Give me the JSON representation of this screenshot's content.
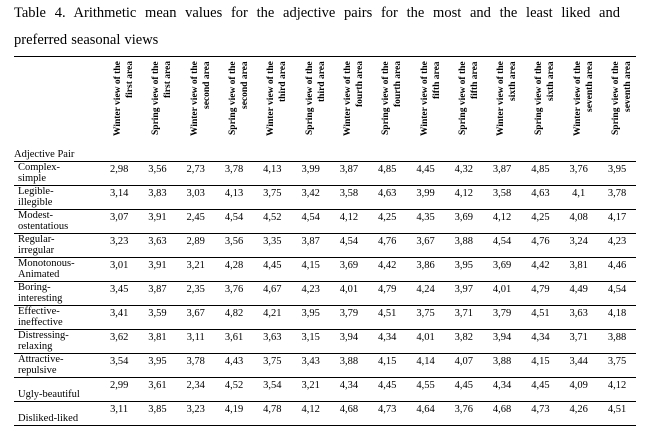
{
  "caption": {
    "line1": "Table 4. Arithmetic mean values for the adjective pairs for the most and the least liked and",
    "line2": "preferred seasonal views"
  },
  "table": {
    "row_header": "Adjective Pair",
    "columns": [
      [
        "Winter view of the",
        "first area"
      ],
      [
        "Spring view of the",
        "first area"
      ],
      [
        "Winter view of the",
        "second area"
      ],
      [
        "Spring view of the",
        "second area"
      ],
      [
        "Winter view of the",
        "third area"
      ],
      [
        "Spring view of the",
        "third area"
      ],
      [
        "Winter view of the",
        "fourth area"
      ],
      [
        "Spring view of the",
        "fourth area"
      ],
      [
        "Winter view of the",
        "fifth area"
      ],
      [
        "Spring view of the",
        "fifth area"
      ],
      [
        "Winter view of the",
        "sixth area"
      ],
      [
        "Spring view of the",
        "sixth area"
      ],
      [
        "Winter view of the",
        "seventh area"
      ],
      [
        "Spring view of the",
        "seventh area"
      ]
    ],
    "rows": [
      {
        "label": [
          "Complex-",
          "simple"
        ],
        "values": [
          "2,98",
          "3,56",
          "2,73",
          "3,78",
          "4,13",
          "3,99",
          "3,87",
          "4,85",
          "4,45",
          "4,32",
          "3,87",
          "4,85",
          "3,76",
          "3,95"
        ]
      },
      {
        "label": [
          "Legible-",
          "illegible"
        ],
        "values": [
          "3,14",
          "3,83",
          "3,03",
          "4,13",
          "3,75",
          "3,42",
          "3,58",
          "4,63",
          "3,99",
          "4,12",
          "3,58",
          "4,63",
          "4,1",
          "3,78"
        ]
      },
      {
        "label": [
          "Modest-",
          "ostentatious"
        ],
        "values": [
          "3,07",
          "3,91",
          "2,45",
          "4,54",
          "4,52",
          "4,54",
          "4,12",
          "4,25",
          "4,35",
          "3,69",
          "4,12",
          "4,25",
          "4,08",
          "4,17"
        ]
      },
      {
        "label": [
          "Regular-",
          "irregular"
        ],
        "values": [
          "3,23",
          "3,63",
          "2,89",
          "3,56",
          "3,35",
          "3,87",
          "4,54",
          "4,76",
          "3,67",
          "3,88",
          "4,54",
          "4,76",
          "3,24",
          "4,23"
        ]
      },
      {
        "label": [
          "Monotonous-",
          "Animated"
        ],
        "values": [
          "3,01",
          "3,91",
          "3,21",
          "4,28",
          "4,45",
          "4,15",
          "3,69",
          "4,42",
          "3,86",
          "3,95",
          "3,69",
          "4,42",
          "3,81",
          "4,46"
        ]
      },
      {
        "label": [
          "Boring-",
          "interesting"
        ],
        "values": [
          "3,45",
          "3,87",
          "2,35",
          "3,76",
          "4,67",
          "4,23",
          "4,01",
          "4,79",
          "4,24",
          "3,97",
          "4,01",
          "4,79",
          "4,49",
          "4,54"
        ]
      },
      {
        "label": [
          "Effective-",
          "ineffective"
        ],
        "values": [
          "3,41",
          "3,59",
          "3,67",
          "4,82",
          "4,21",
          "3,95",
          "3,79",
          "4,51",
          "3,75",
          "3,71",
          "3,79",
          "4,51",
          "3,63",
          "4,18"
        ]
      },
      {
        "label": [
          "Distressing-",
          "relaxing"
        ],
        "values": [
          "3,62",
          "3,81",
          "3,11",
          "3,61",
          "3,63",
          "3,15",
          "3,94",
          "4,34",
          "4,01",
          "3,82",
          "3,94",
          "4,34",
          "3,71",
          "3,88"
        ]
      },
      {
        "label": [
          "Attractive-",
          "repulsive"
        ],
        "values": [
          "3,54",
          "3,95",
          "3,78",
          "4,43",
          "3,75",
          "3,43",
          "3,88",
          "4,15",
          "4,14",
          "4,07",
          "3,88",
          "4,15",
          "3,44",
          "3,75"
        ]
      },
      {
        "label": [
          "",
          "Ugly-beautiful"
        ],
        "values": [
          "2,99",
          "3,61",
          "2,34",
          "4,52",
          "3,54",
          "3,21",
          "4,34",
          "4,45",
          "4,55",
          "4,45",
          "4,34",
          "4,45",
          "4,09",
          "4,12"
        ]
      },
      {
        "label": [
          "",
          "Disliked-liked"
        ],
        "values": [
          "3,11",
          "3,85",
          "3,23",
          "4,19",
          "4,78",
          "4,12",
          "4,68",
          "4,73",
          "4,64",
          "3,76",
          "4,68",
          "4,73",
          "4,26",
          "4,51"
        ]
      }
    ]
  }
}
